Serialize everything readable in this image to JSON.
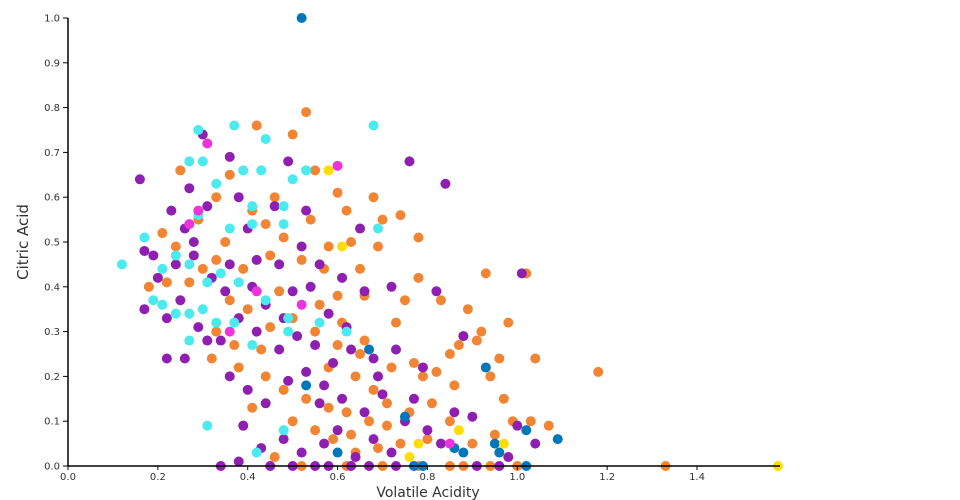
{
  "chart_data": {
    "type": "scatter",
    "xlabel": "Volatile Acidity",
    "ylabel": "Citric Acid",
    "xlim": [
      0,
      1.58
    ],
    "ylim": [
      0,
      1.0
    ],
    "xticks": [
      "0.0",
      "0.2",
      "0.4",
      "0.6",
      "0.8",
      "1.0",
      "1.2",
      "1.4"
    ],
    "yticks": [
      "0.0",
      "0.1",
      "0.2",
      "0.3",
      "0.4",
      "0.5",
      "0.6",
      "0.7",
      "0.8",
      "0.9",
      "1.0"
    ],
    "grid": false,
    "series": [
      {
        "color": "#f28533",
        "points": [
          [
            0.53,
            0.79
          ],
          [
            0.42,
            0.76
          ],
          [
            0.5,
            0.74
          ],
          [
            0.25,
            0.66
          ],
          [
            0.36,
            0.65
          ],
          [
            0.55,
            0.66
          ],
          [
            0.6,
            0.61
          ],
          [
            0.46,
            0.6
          ],
          [
            0.33,
            0.6
          ],
          [
            0.41,
            0.57
          ],
          [
            0.29,
            0.55
          ],
          [
            0.62,
            0.57
          ],
          [
            0.7,
            0.55
          ],
          [
            0.74,
            0.56
          ],
          [
            0.78,
            0.51
          ],
          [
            0.63,
            0.5
          ],
          [
            0.69,
            0.49
          ],
          [
            0.58,
            0.49
          ],
          [
            0.48,
            0.51
          ],
          [
            0.35,
            0.5
          ],
          [
            0.24,
            0.49
          ],
          [
            0.21,
            0.52
          ],
          [
            0.18,
            0.4
          ],
          [
            0.22,
            0.41
          ],
          [
            0.3,
            0.44
          ],
          [
            0.39,
            0.44
          ],
          [
            0.45,
            0.47
          ],
          [
            0.52,
            0.46
          ],
          [
            0.57,
            0.44
          ],
          [
            0.66,
            0.38
          ],
          [
            0.75,
            0.37
          ],
          [
            0.78,
            0.42
          ],
          [
            0.83,
            0.37
          ],
          [
            0.93,
            0.43
          ],
          [
            1.02,
            0.43
          ],
          [
            0.89,
            0.35
          ],
          [
            0.98,
            0.32
          ],
          [
            0.88,
            0.29
          ],
          [
            0.92,
            0.3
          ],
          [
            0.87,
            0.27
          ],
          [
            0.85,
            0.25
          ],
          [
            0.96,
            0.24
          ],
          [
            1.04,
            0.24
          ],
          [
            1.18,
            0.21
          ],
          [
            0.94,
            0.2
          ],
          [
            0.86,
            0.18
          ],
          [
            0.79,
            0.2
          ],
          [
            0.72,
            0.22
          ],
          [
            0.65,
            0.25
          ],
          [
            0.6,
            0.27
          ],
          [
            0.55,
            0.3
          ],
          [
            0.5,
            0.33
          ],
          [
            0.45,
            0.31
          ],
          [
            0.4,
            0.35
          ],
          [
            0.36,
            0.37
          ],
          [
            0.33,
            0.3
          ],
          [
            0.32,
            0.24
          ],
          [
            0.38,
            0.22
          ],
          [
            0.44,
            0.2
          ],
          [
            0.48,
            0.17
          ],
          [
            0.53,
            0.15
          ],
          [
            0.58,
            0.13
          ],
          [
            0.62,
            0.12
          ],
          [
            0.67,
            0.1
          ],
          [
            0.71,
            0.09
          ],
          [
            0.76,
            0.12
          ],
          [
            0.81,
            0.14
          ],
          [
            0.85,
            0.1
          ],
          [
            0.9,
            0.05
          ],
          [
            0.99,
            0.1
          ],
          [
            1.03,
            0.1
          ],
          [
            1.07,
            0.09
          ],
          [
            0.95,
            0.07
          ],
          [
            0.8,
            0.06
          ],
          [
            0.74,
            0.05
          ],
          [
            0.69,
            0.04
          ],
          [
            0.64,
            0.03
          ],
          [
            0.59,
            0.06
          ],
          [
            0.55,
            0.08
          ],
          [
            0.5,
            0.1
          ],
          [
            0.46,
            0.02
          ],
          [
            0.52,
            0
          ],
          [
            0.62,
            0
          ],
          [
            0.7,
            0
          ],
          [
            0.78,
            0
          ],
          [
            0.85,
            0
          ],
          [
            0.88,
            0
          ],
          [
            0.94,
            0
          ],
          [
            1.0,
            0
          ],
          [
            1.33,
            0
          ],
          [
            0.39,
            0.09
          ],
          [
            0.41,
            0.13
          ],
          [
            0.43,
            0.26
          ],
          [
            0.47,
            0.39
          ],
          [
            0.56,
            0.36
          ],
          [
            0.61,
            0.32
          ],
          [
            0.64,
            0.2
          ],
          [
            0.68,
            0.17
          ],
          [
            0.73,
            0.32
          ],
          [
            0.77,
            0.23
          ],
          [
            0.82,
            0.21
          ],
          [
            0.91,
            0.28
          ],
          [
            0.97,
            0.15
          ],
          [
            0.6,
            0.38
          ],
          [
            0.65,
            0.44
          ],
          [
            0.68,
            0.6
          ],
          [
            0.54,
            0.55
          ],
          [
            0.44,
            0.54
          ],
          [
            0.27,
            0.41
          ],
          [
            0.33,
            0.46
          ],
          [
            0.37,
            0.27
          ],
          [
            0.58,
            0.22
          ],
          [
            0.66,
            0.28
          ],
          [
            0.71,
            0.14
          ],
          [
            0.63,
            0.07
          ]
        ]
      },
      {
        "color": "#8e1fb0",
        "points": [
          [
            0.16,
            0.64
          ],
          [
            0.76,
            0.68
          ],
          [
            0.84,
            0.63
          ],
          [
            1.01,
            0.43
          ],
          [
            0.3,
            0.74
          ],
          [
            0.36,
            0.69
          ],
          [
            0.49,
            0.68
          ],
          [
            0.27,
            0.62
          ],
          [
            0.31,
            0.58
          ],
          [
            0.38,
            0.6
          ],
          [
            0.23,
            0.57
          ],
          [
            0.4,
            0.53
          ],
          [
            0.26,
            0.53
          ],
          [
            0.17,
            0.48
          ],
          [
            0.2,
            0.42
          ],
          [
            0.24,
            0.45
          ],
          [
            0.28,
            0.47
          ],
          [
            0.32,
            0.42
          ],
          [
            0.36,
            0.45
          ],
          [
            0.42,
            0.46
          ],
          [
            0.47,
            0.45
          ],
          [
            0.52,
            0.49
          ],
          [
            0.56,
            0.45
          ],
          [
            0.61,
            0.42
          ],
          [
            0.66,
            0.39
          ],
          [
            0.72,
            0.4
          ],
          [
            0.82,
            0.39
          ],
          [
            0.17,
            0.35
          ],
          [
            0.22,
            0.33
          ],
          [
            0.25,
            0.37
          ],
          [
            0.29,
            0.31
          ],
          [
            0.34,
            0.28
          ],
          [
            0.38,
            0.33
          ],
          [
            0.42,
            0.3
          ],
          [
            0.47,
            0.26
          ],
          [
            0.51,
            0.29
          ],
          [
            0.55,
            0.27
          ],
          [
            0.59,
            0.23
          ],
          [
            0.63,
            0.26
          ],
          [
            0.68,
            0.24
          ],
          [
            0.73,
            0.26
          ],
          [
            0.79,
            0.22
          ],
          [
            0.88,
            0.29
          ],
          [
            0.22,
            0.24
          ],
          [
            0.26,
            0.24
          ],
          [
            0.36,
            0.2
          ],
          [
            0.4,
            0.17
          ],
          [
            0.44,
            0.14
          ],
          [
            0.49,
            0.19
          ],
          [
            0.53,
            0.21
          ],
          [
            0.57,
            0.18
          ],
          [
            0.61,
            0.15
          ],
          [
            0.66,
            0.12
          ],
          [
            0.7,
            0.16
          ],
          [
            0.75,
            0.1
          ],
          [
            0.8,
            0.08
          ],
          [
            0.86,
            0.12
          ],
          [
            0.9,
            0.11
          ],
          [
            1.0,
            0.09
          ],
          [
            1.04,
            0.05
          ],
          [
            0.39,
            0.09
          ],
          [
            0.43,
            0.04
          ],
          [
            0.48,
            0.06
          ],
          [
            0.52,
            0.03
          ],
          [
            0.57,
            0.05
          ],
          [
            0.6,
            0.08
          ],
          [
            0.64,
            0.02
          ],
          [
            0.68,
            0.06
          ],
          [
            0.72,
            0.03
          ],
          [
            0.34,
            0
          ],
          [
            0.38,
            0.01
          ],
          [
            0.45,
            0
          ],
          [
            0.5,
            0
          ],
          [
            0.55,
            0
          ],
          [
            0.58,
            0
          ],
          [
            0.63,
            0
          ],
          [
            0.67,
            0
          ],
          [
            0.73,
            0
          ],
          [
            0.91,
            0
          ],
          [
            0.96,
            0
          ],
          [
            0.98,
            0.02
          ],
          [
            0.44,
            0.36
          ],
          [
            0.5,
            0.39
          ],
          [
            0.54,
            0.4
          ],
          [
            0.58,
            0.34
          ],
          [
            0.62,
            0.31
          ],
          [
            0.46,
            0.58
          ],
          [
            0.53,
            0.57
          ],
          [
            0.65,
            0.53
          ],
          [
            0.19,
            0.47
          ],
          [
            0.28,
            0.5
          ],
          [
            0.35,
            0.39
          ],
          [
            0.41,
            0.4
          ],
          [
            0.48,
            0.33
          ],
          [
            0.56,
            0.14
          ],
          [
            0.69,
            0.2
          ],
          [
            0.77,
            0.15
          ],
          [
            0.83,
            0.05
          ],
          [
            0.31,
            0.28
          ]
        ]
      },
      {
        "color": "#4aeaef",
        "points": [
          [
            0.12,
            0.45
          ],
          [
            0.29,
            0.75
          ],
          [
            0.37,
            0.76
          ],
          [
            0.68,
            0.76
          ],
          [
            0.31,
            0.09
          ],
          [
            0.44,
            0.73
          ],
          [
            0.27,
            0.68
          ],
          [
            0.3,
            0.68
          ],
          [
            0.33,
            0.63
          ],
          [
            0.39,
            0.66
          ],
          [
            0.43,
            0.66
          ],
          [
            0.53,
            0.66
          ],
          [
            0.5,
            0.64
          ],
          [
            0.48,
            0.58
          ],
          [
            0.41,
            0.58
          ],
          [
            0.29,
            0.56
          ],
          [
            0.36,
            0.53
          ],
          [
            0.41,
            0.54
          ],
          [
            0.48,
            0.54
          ],
          [
            0.17,
            0.51
          ],
          [
            0.21,
            0.44
          ],
          [
            0.24,
            0.47
          ],
          [
            0.27,
            0.45
          ],
          [
            0.31,
            0.41
          ],
          [
            0.34,
            0.43
          ],
          [
            0.38,
            0.41
          ],
          [
            0.19,
            0.37
          ],
          [
            0.21,
            0.36
          ],
          [
            0.24,
            0.34
          ],
          [
            0.27,
            0.34
          ],
          [
            0.3,
            0.35
          ],
          [
            0.33,
            0.32
          ],
          [
            0.37,
            0.32
          ],
          [
            0.41,
            0.27
          ],
          [
            0.27,
            0.28
          ],
          [
            0.44,
            0.37
          ],
          [
            0.49,
            0.33
          ],
          [
            0.56,
            0.32
          ],
          [
            0.62,
            0.3
          ],
          [
            0.69,
            0.53
          ],
          [
            0.49,
            0.3
          ],
          [
            0.42,
            0.03
          ],
          [
            0.48,
            0.08
          ]
        ]
      },
      {
        "color": "#0077bb",
        "points": [
          [
            0.52,
            1.0
          ],
          [
            1.09,
            0.06
          ],
          [
            1.02,
            0.08
          ],
          [
            0.95,
            0.05
          ],
          [
            0.96,
            0.03
          ],
          [
            0.86,
            0.04
          ],
          [
            0.88,
            0.03
          ],
          [
            0.77,
            0
          ],
          [
            0.79,
            0
          ],
          [
            1.02,
            0
          ],
          [
            0.6,
            0.03
          ],
          [
            0.53,
            0.18
          ],
          [
            0.67,
            0.26
          ],
          [
            0.75,
            0.11
          ],
          [
            0.93,
            0.22
          ]
        ]
      },
      {
        "color": "#ffdd00",
        "points": [
          [
            1.58,
            0
          ],
          [
            0.58,
            0.66
          ],
          [
            0.97,
            0.05
          ],
          [
            0.76,
            0.02
          ],
          [
            0.87,
            0.08
          ],
          [
            0.78,
            0.05
          ],
          [
            0.61,
            0.49
          ]
        ]
      },
      {
        "color": "#ee33dd",
        "points": [
          [
            0.6,
            0.67
          ],
          [
            0.31,
            0.72
          ],
          [
            0.29,
            0.57
          ],
          [
            0.85,
            0.05
          ],
          [
            0.27,
            0.54
          ],
          [
            0.42,
            0.39
          ],
          [
            0.36,
            0.3
          ],
          [
            0.52,
            0.36
          ]
        ]
      }
    ]
  }
}
